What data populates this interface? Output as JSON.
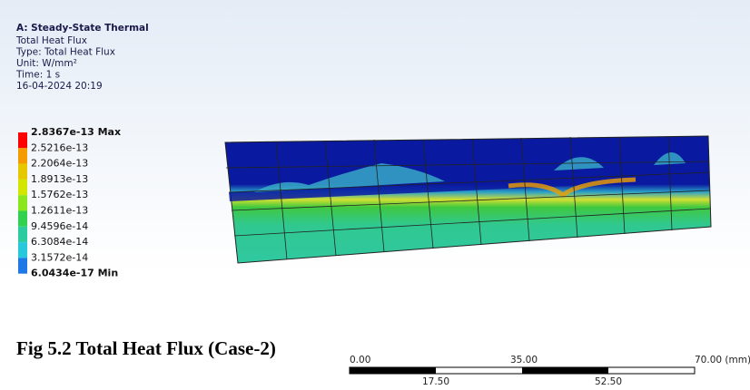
{
  "header": {
    "title": "A: Steady-State Thermal",
    "lines": [
      "Total Heat Flux",
      "Type: Total Heat Flux",
      "Unit: W/mm²",
      "Time: 1 s",
      "16-04-2024 20:19"
    ]
  },
  "legend": {
    "labels": [
      "2.8367e-13 Max",
      "2.5216e-13",
      "2.2064e-13",
      "1.8913e-13",
      "1.5762e-13",
      "1.2611e-13",
      "9.4596e-14",
      "6.3084e-14",
      "3.1572e-14",
      "6.0434e-17 Min"
    ],
    "band_colors": [
      "#ff0000",
      "#f59b00",
      "#e6c800",
      "#d2e600",
      "#8ce61e",
      "#32d250",
      "#2dcba0",
      "#28c8dc",
      "#1e78e6"
    ]
  },
  "caption": "Fig 5.2 Total Heat Flux (Case-2)",
  "scale_bar": {
    "top_labels": [
      "0.00",
      "35.00",
      "70.00 (mm)"
    ],
    "bottom_labels": [
      "17.50",
      "52.50"
    ]
  }
}
